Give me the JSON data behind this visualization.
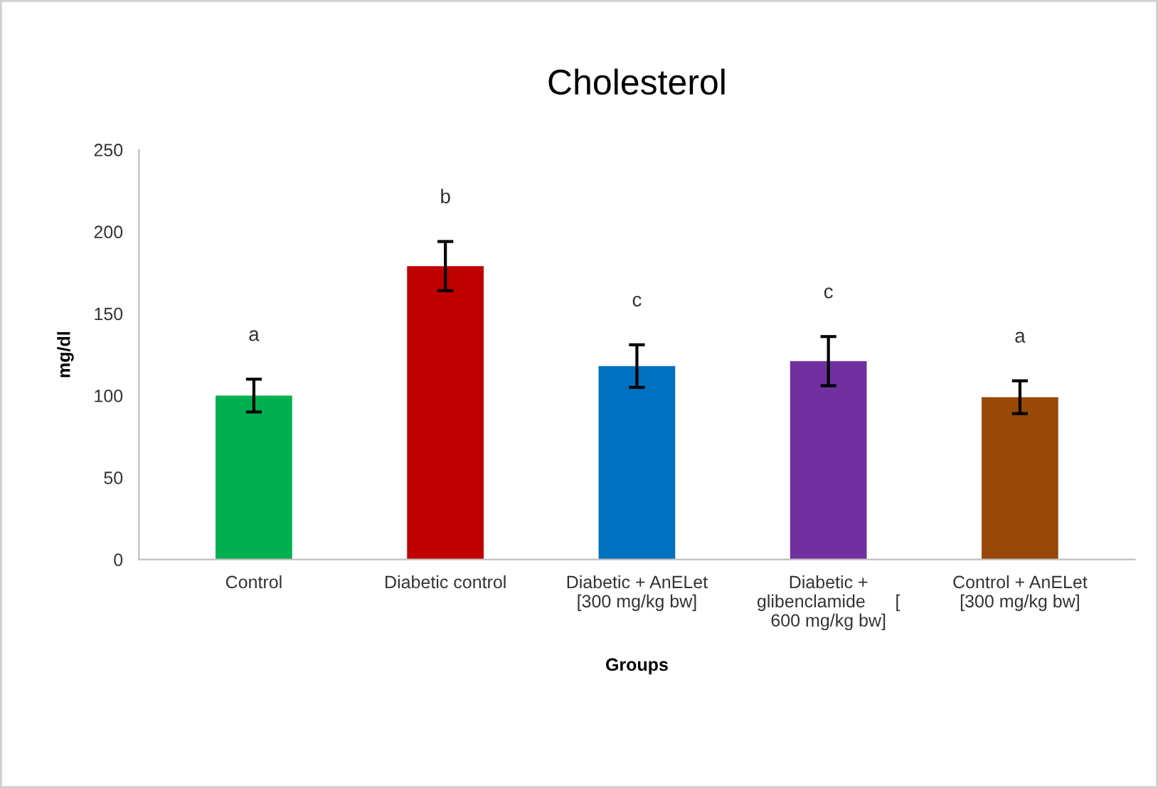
{
  "chart_data": {
    "type": "bar",
    "title": "Cholesterol",
    "xlabel": "Groups",
    "ylabel": "mg/dl",
    "categories": [
      "Control",
      "Diabetic control",
      "Diabetic + AnELet\n[300 mg/kg bw]",
      "Diabetic +\nglibenclamide      [\n600 mg/kg bw]",
      "Control + AnELet\n[300 mg/kg bw]"
    ],
    "values": [
      100,
      179,
      118,
      121,
      99
    ],
    "errors": [
      10,
      15,
      13,
      15,
      10
    ],
    "colors": [
      "#00b050",
      "#c00000",
      "#0070c0",
      "#7030a0",
      "#984807"
    ],
    "ylim": [
      0,
      250
    ],
    "yticks": [
      0,
      50,
      100,
      150,
      200,
      250
    ],
    "grid": false,
    "annotations": [
      "a",
      "b",
      "c",
      "c",
      "a"
    ]
  }
}
